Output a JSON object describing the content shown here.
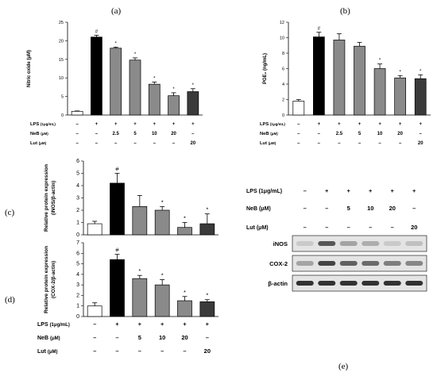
{
  "chart_data": [
    {
      "panel": "(a)",
      "type": "bar",
      "ylabel": "Nitric oxide (μM)",
      "ylim": [
        0,
        25
      ],
      "yticks": [
        "0",
        "5",
        "10",
        "15",
        "20",
        "25"
      ],
      "values": [
        1.0,
        21.0,
        18.0,
        14.8,
        8.3,
        5.2,
        6.3
      ],
      "errors": [
        0.1,
        0.5,
        0.3,
        0.6,
        0.6,
        0.8,
        0.8
      ],
      "markers": [
        "",
        "#",
        "*",
        "*",
        "*",
        "*",
        "*"
      ],
      "colors": [
        "#ffffff",
        "#000000",
        "#8a8a8a",
        "#8a8a8a",
        "#8a8a8a",
        "#8a8a8a",
        "#3a3a3a"
      ],
      "rows": [
        {
          "label": "LPS",
          "unit": "(1μg/mL)",
          "cells": [
            "–",
            "+",
            "+",
            "+",
            "+",
            "+",
            "+"
          ]
        },
        {
          "label": "NeB",
          "unit": "(μM)",
          "cells": [
            "–",
            "–",
            "2.5",
            "5",
            "10",
            "20",
            "–"
          ]
        },
        {
          "label": "Lut",
          "unit": "(μM)",
          "cells": [
            "–",
            "–",
            "–",
            "–",
            "–",
            "–",
            "20"
          ]
        }
      ]
    },
    {
      "panel": "(b)",
      "type": "bar",
      "ylabel": "PGE₂ (ng/mL)",
      "ylim": [
        0,
        12
      ],
      "yticks": [
        "0",
        "2",
        "4",
        "6",
        "8",
        "10",
        "12"
      ],
      "values": [
        1.8,
        10.1,
        9.7,
        8.9,
        6.0,
        4.8,
        4.7
      ],
      "errors": [
        0.2,
        0.6,
        0.8,
        0.5,
        0.6,
        0.3,
        0.5
      ],
      "markers": [
        "",
        "#",
        "",
        "",
        "*",
        "*",
        "*"
      ],
      "colors": [
        "#ffffff",
        "#000000",
        "#8a8a8a",
        "#8a8a8a",
        "#8a8a8a",
        "#8a8a8a",
        "#3a3a3a"
      ],
      "rows": [
        {
          "label": "LPS",
          "unit": "(1μg/mL)",
          "cells": [
            "–",
            "+",
            "+",
            "+",
            "+",
            "+",
            "+"
          ]
        },
        {
          "label": "NeB",
          "unit": "(μM)",
          "cells": [
            "–",
            "–",
            "2.5",
            "5",
            "10",
            "20",
            "–"
          ]
        },
        {
          "label": "Lut",
          "unit": "(μM)",
          "cells": [
            "–",
            "–",
            "–",
            "–",
            "–",
            "–",
            "20"
          ]
        }
      ]
    },
    {
      "panel": "(c)",
      "type": "bar",
      "ylabel": "Relative protein expression (iNOS/β-actin)",
      "ylim": [
        0,
        6
      ],
      "yticks": [
        "0",
        "1",
        "2",
        "3",
        "4",
        "5",
        "6"
      ],
      "values": [
        0.9,
        4.2,
        2.3,
        2.0,
        0.6,
        0.9
      ],
      "errors": [
        0.2,
        0.8,
        0.9,
        0.3,
        0.4,
        0.8
      ],
      "markers": [
        "",
        "#",
        "",
        "*",
        "*",
        "*"
      ],
      "colors": [
        "#ffffff",
        "#000000",
        "#8a8a8a",
        "#8a8a8a",
        "#8a8a8a",
        "#3a3a3a"
      ]
    },
    {
      "panel": "(d)",
      "type": "bar",
      "ylabel": "Relative protein expression (COX-2/β-actin)",
      "ylim": [
        0,
        7
      ],
      "yticks": [
        "0",
        "1",
        "2",
        "3",
        "4",
        "5",
        "6",
        "7"
      ],
      "values": [
        1.0,
        5.4,
        3.6,
        3.0,
        1.5,
        1.4
      ],
      "errors": [
        0.3,
        0.5,
        0.3,
        0.5,
        0.4,
        0.2
      ],
      "markers": [
        "",
        "#",
        "*",
        "*",
        "*",
        "*"
      ],
      "colors": [
        "#ffffff",
        "#000000",
        "#8a8a8a",
        "#8a8a8a",
        "#8a8a8a",
        "#3a3a3a"
      ],
      "rows": [
        {
          "label": "LPS",
          "unit": "(1μg/mL)",
          "cells": [
            "–",
            "+",
            "+",
            "+",
            "+",
            "+"
          ]
        },
        {
          "label": "NeB",
          "unit": "(μM)",
          "cells": [
            "–",
            "–",
            "5",
            "10",
            "20",
            "–"
          ]
        },
        {
          "label": "Lut",
          "unit": "(μM)",
          "cells": [
            "–",
            "–",
            "–",
            "–",
            "–",
            "20"
          ]
        }
      ]
    }
  ],
  "blot": {
    "panel": "(e)",
    "rows": [
      {
        "label": "LPS",
        "unit": "(1μg/mL)",
        "cells": [
          "–",
          "+",
          "+",
          "+",
          "+",
          "+"
        ]
      },
      {
        "label": "NeB",
        "unit": "(μM)",
        "cells": [
          "–",
          "–",
          "5",
          "10",
          "20",
          "–"
        ]
      },
      {
        "label": "Lut",
        "unit": "(μM)",
        "cells": [
          "–",
          "–",
          "–",
          "–",
          "–",
          "20"
        ]
      }
    ],
    "bands": [
      {
        "label": "iNOS",
        "intensity": [
          0.15,
          0.75,
          0.35,
          0.3,
          0.15,
          0.2
        ]
      },
      {
        "label": "COX-2",
        "intensity": [
          0.35,
          0.85,
          0.7,
          0.65,
          0.55,
          0.5
        ]
      },
      {
        "label": "β-actin",
        "intensity": [
          0.95,
          0.95,
          0.95,
          0.95,
          0.95,
          0.95
        ]
      }
    ]
  }
}
